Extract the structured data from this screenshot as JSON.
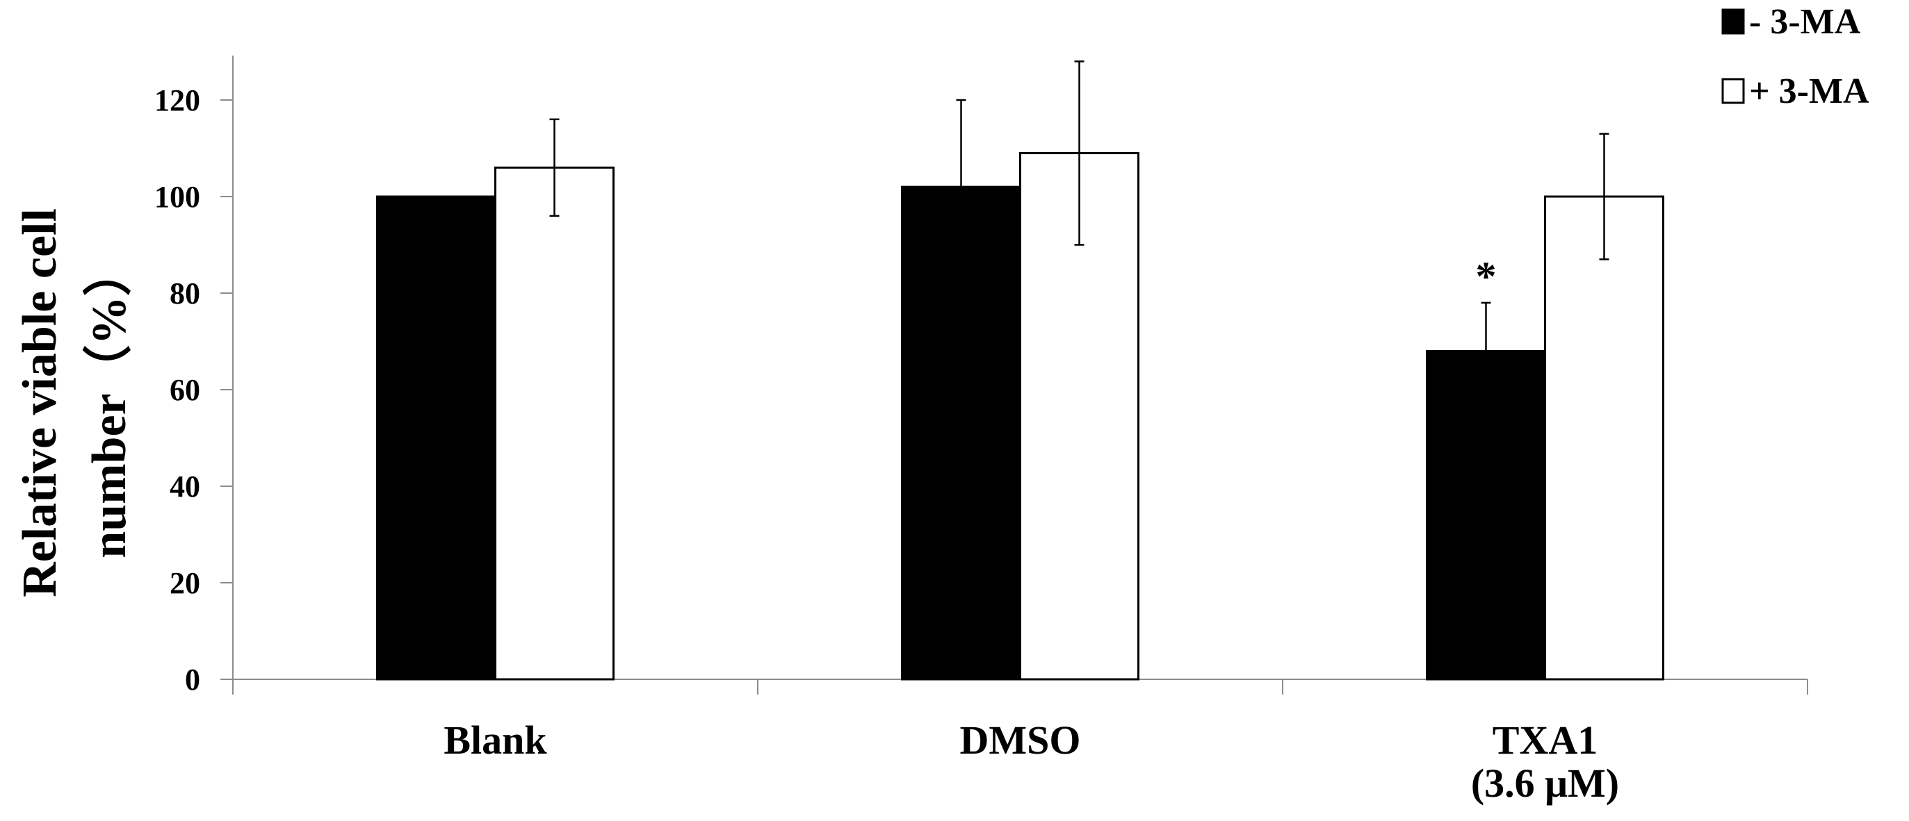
{
  "chart_data": {
    "type": "bar",
    "categories": [
      {
        "lines": [
          "Blank"
        ]
      },
      {
        "lines": [
          "DMSO"
        ]
      },
      {
        "lines": [
          "TXA1",
          "(3.6 μM)"
        ]
      }
    ],
    "series": [
      {
        "name": "- 3-MA",
        "color": "#000000",
        "values": [
          100,
          102,
          68
        ],
        "errors": [
          0,
          18,
          10
        ]
      },
      {
        "name": "+ 3-MA",
        "color": "#ffffff",
        "values": [
          106,
          109,
          100
        ],
        "errors": [
          10,
          19,
          13
        ]
      }
    ],
    "annotations": [
      {
        "text": "*",
        "category": 2,
        "series": 0
      }
    ],
    "ylabel_lines": [
      "Relative viable cell",
      "number（%）"
    ],
    "xlabel": "",
    "ylim": [
      0,
      130
    ],
    "yticks": [
      0,
      20,
      40,
      60,
      80,
      100,
      120
    ],
    "legend_position": "top-right",
    "grid": false
  }
}
